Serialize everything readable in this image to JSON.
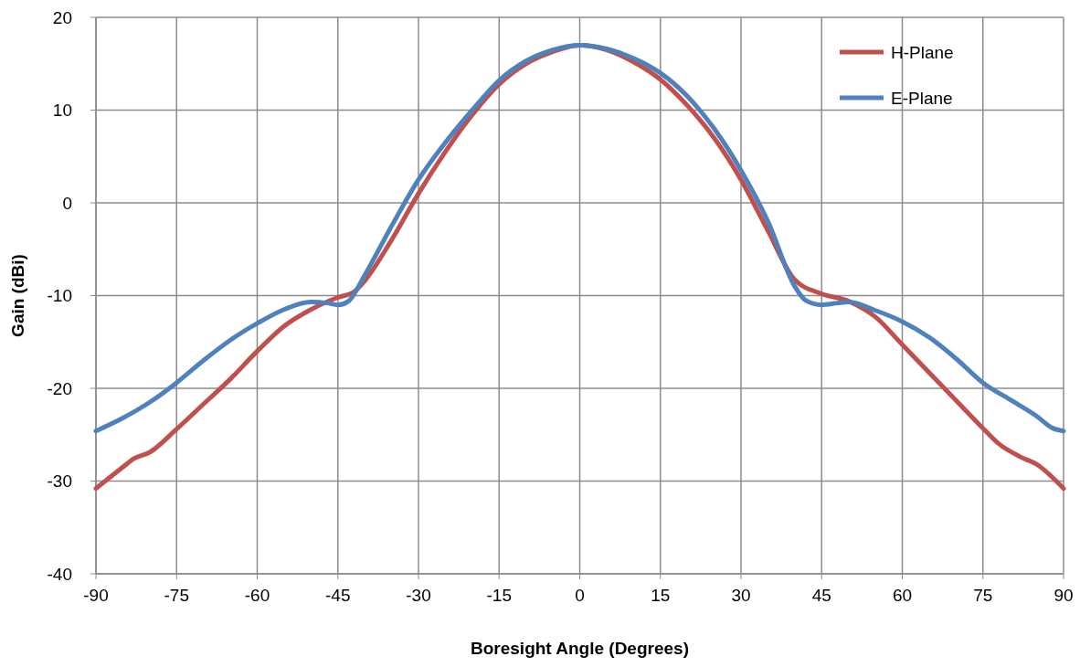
{
  "chart_data": {
    "type": "line",
    "xlabel": "Boresight Angle (Degrees)",
    "ylabel": "Gain (dBi)",
    "xlim": [
      -90,
      90
    ],
    "xticks": [
      -90,
      -75,
      -60,
      -45,
      -30,
      -15,
      0,
      15,
      30,
      45,
      60,
      75,
      90
    ],
    "ylim": [
      -40,
      20
    ],
    "yticks": [
      -40,
      -30,
      -20,
      -10,
      0,
      10,
      20
    ],
    "grid": true,
    "legend": "top right",
    "marker": "none",
    "line_style": "solid",
    "series": [
      {
        "name": "H-Plane",
        "color": "#c0504d",
        "x": [
          -90,
          -85,
          -83,
          -80,
          -75,
          -70,
          -65,
          -60,
          -55,
          -50,
          -45,
          -42,
          -40,
          -35,
          -30,
          -25,
          -20,
          -15,
          -10,
          -5,
          0,
          5,
          10,
          15,
          20,
          25,
          30,
          35,
          40,
          45,
          50,
          55,
          60,
          65,
          70,
          75,
          78,
          82,
          85,
          90
        ],
        "values": [
          -30.8,
          -28.5,
          -27.6,
          -26.9,
          -24.4,
          -21.7,
          -19,
          -16,
          -13.3,
          -11.5,
          -10.2,
          -9.6,
          -8.4,
          -4,
          1,
          5.5,
          9.5,
          12.8,
          15,
          16.3,
          17,
          16.5,
          15.2,
          13.3,
          10.5,
          7,
          2.5,
          -3,
          -8.3,
          -9.8,
          -10.6,
          -12.3,
          -15.3,
          -18.3,
          -21.3,
          -24.3,
          -26,
          -27.4,
          -28.2,
          -30.8
        ]
      },
      {
        "name": "E-Plane",
        "color": "#4f81bd",
        "x": [
          -90,
          -85,
          -80,
          -75,
          -70,
          -65,
          -60,
          -55,
          -50,
          -47,
          -45,
          -43,
          -40,
          -35,
          -30,
          -25,
          -20,
          -15,
          -10,
          -5,
          0,
          5,
          10,
          15,
          20,
          25,
          30,
          35,
          40,
          42,
          45,
          48,
          50,
          55,
          60,
          65,
          70,
          75,
          80,
          85,
          88,
          90
        ],
        "values": [
          -24.6,
          -23.2,
          -21.5,
          -19.4,
          -17,
          -14.8,
          -13,
          -11.5,
          -10.7,
          -10.8,
          -11,
          -10.6,
          -7.8,
          -2.5,
          2.5,
          6.5,
          10,
          13.2,
          15.3,
          16.5,
          17,
          16.6,
          15.6,
          14,
          11.5,
          8,
          3.5,
          -2,
          -9,
          -10.5,
          -11,
          -10.8,
          -10.7,
          -11.6,
          -12.8,
          -14.5,
          -16.8,
          -19.4,
          -21.2,
          -23,
          -24.3,
          -24.6
        ]
      }
    ]
  }
}
